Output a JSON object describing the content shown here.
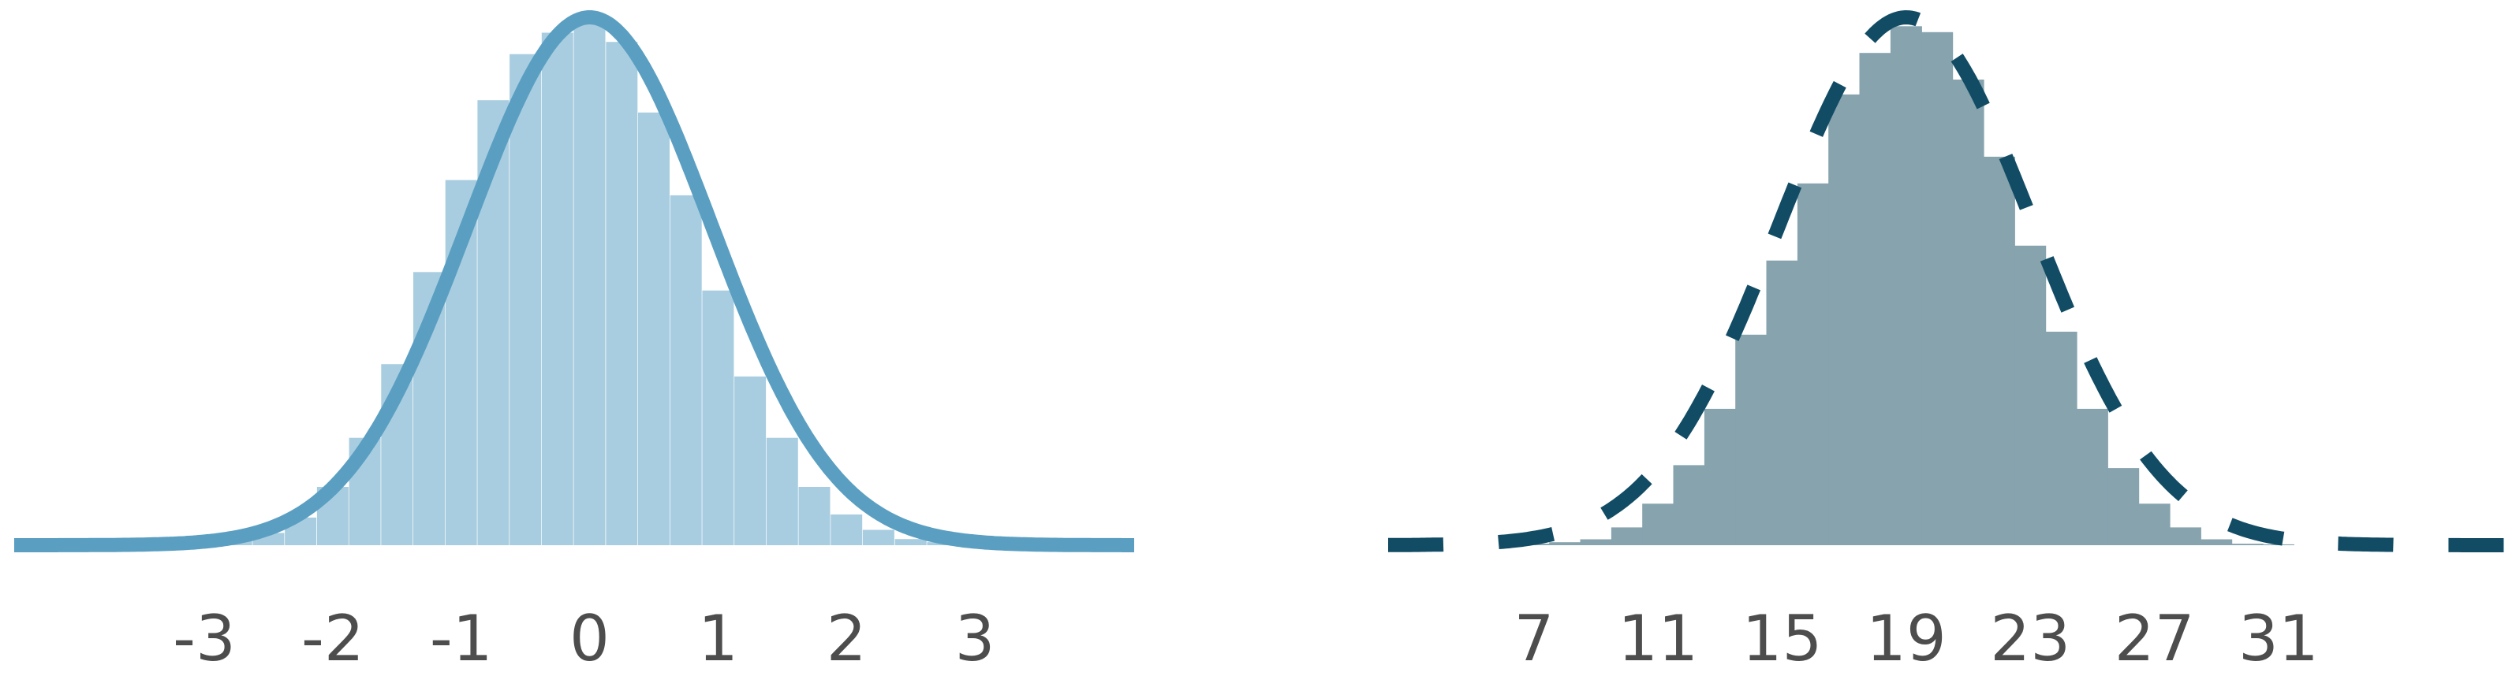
{
  "chart_data": [
    {
      "type": "bar",
      "x": [
        -3.0,
        -2.75,
        -2.5,
        -2.25,
        -2.0,
        -1.75,
        -1.5,
        -1.25,
        -1.0,
        -0.75,
        -0.5,
        -0.25,
        0.0,
        0.25,
        0.5,
        0.75,
        1.0,
        1.25,
        1.5,
        1.75,
        2.0,
        2.25,
        2.5,
        2.75,
        3.0
      ],
      "values": [
        0.5,
        1.5,
        4,
        9,
        19,
        35,
        59,
        89,
        119,
        145,
        160,
        167,
        170,
        164,
        141,
        114,
        83,
        55,
        35,
        19,
        10,
        5,
        2,
        1,
        0.5
      ],
      "ylim": [
        0,
        172
      ],
      "xlim": [
        -4.48,
        4.24
      ],
      "xticks": [
        "-3",
        "-2",
        "-1",
        "0",
        "1",
        "2",
        "3"
      ],
      "curve": {
        "kind": "normal",
        "mean": 0,
        "sd": 0.95,
        "peak": 172,
        "style": "solid"
      },
      "colors": {
        "bars": "#a9cde0",
        "curve": "#5a9fc2"
      }
    },
    {
      "type": "bar",
      "x": [
        7,
        8,
        9,
        10,
        11,
        12,
        13,
        14,
        15,
        16,
        17,
        18,
        19,
        20,
        21,
        22,
        23,
        24,
        25,
        26,
        27,
        28,
        29,
        30,
        31
      ],
      "values": [
        0.5,
        1,
        2,
        6,
        14,
        27,
        46,
        71,
        96,
        122,
        152,
        166,
        175,
        173,
        157,
        131,
        101,
        72,
        46,
        26,
        14,
        6,
        2,
        0.5,
        0.3
      ],
      "ylim": [
        0,
        178
      ],
      "xlim": [
        2.3,
        38.35
      ],
      "xticks": [
        "7",
        "11",
        "15",
        "19",
        "23",
        "27",
        "31"
      ],
      "curve": {
        "kind": "normal",
        "mean": 19,
        "sd": 4.1,
        "peak": 178,
        "style": "dashed"
      },
      "colors": {
        "bars": "#86a3ae",
        "curve": "#124c64"
      }
    }
  ]
}
